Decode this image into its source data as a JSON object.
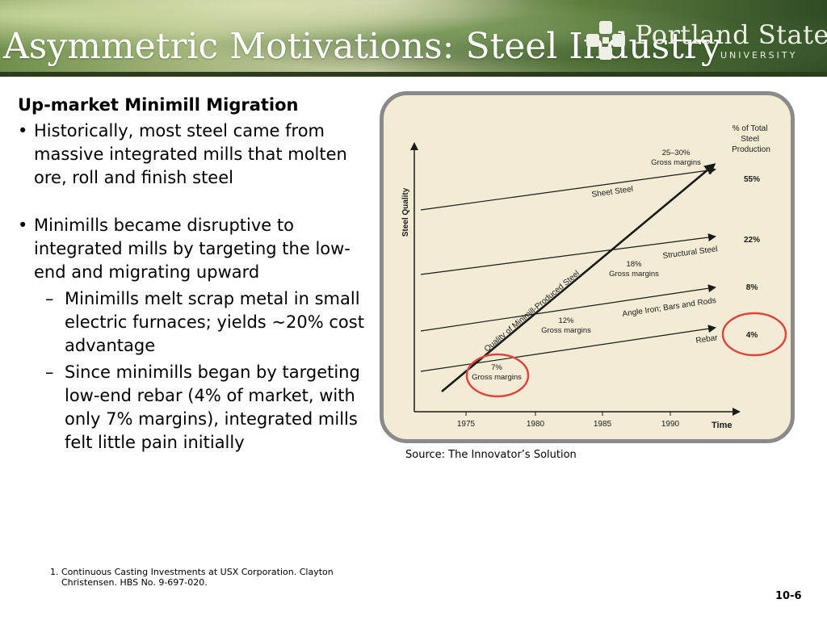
{
  "slide": {
    "title": "Asymmetric Motivations: Steel Industry",
    "logo_name": "Portland State",
    "logo_sub": "UNIVERSITY",
    "subhead": "Up-market Minimill Migration",
    "bullets": [
      "Historically, most steel came from massive integrated mills that molten ore, roll and finish steel",
      "Minimills became disruptive to integrated mills by targeting the low-end and migrating upward"
    ],
    "sub_bullets": [
      "Minimills melt scrap metal in small electric furnaces; yields ~20% cost advantage",
      "Since minimills began by targeting low-end rebar (4% of market, with only 7% margins), integrated mills felt little pain initially"
    ],
    "source": "Source: The Innovator’s Solution",
    "footnote_num": "1.",
    "footnote": "Continuous Casting Investments at USX Corporation. Clayton Christensen. HBS No. 9-697-020.",
    "page_number": "10-6",
    "colors": {
      "highlight_circle": "#e0443e",
      "frame_border": "#8a8a8a",
      "chart_bg": "#f3ecd5"
    }
  },
  "chart_data": {
    "type": "line",
    "xlabel": "Time",
    "ylabel": "Steel Quality",
    "x_ticks": [
      "1975",
      "1980",
      "1985",
      "1990"
    ],
    "right_header": "% of Total Steel Production",
    "segments": [
      {
        "name": "Sheet Steel",
        "share": "55%"
      },
      {
        "name": "Structural Steel",
        "share": "22%"
      },
      {
        "name": "Angle Iron; Bars and Rods",
        "share": "8%"
      },
      {
        "name": "Rebar",
        "share": "4%"
      }
    ],
    "minimill_line_label": "Quality of Minimill-Produced Steel",
    "margin_labels": [
      {
        "pct": "7%",
        "text": "Gross margins"
      },
      {
        "pct": "12%",
        "text": "Gross margins"
      },
      {
        "pct": "18%",
        "text": "Gross margins"
      },
      {
        "pct": "25–30%",
        "text": "Gross margins"
      }
    ],
    "highlighted": [
      "7% Gross margins",
      "4%"
    ]
  }
}
